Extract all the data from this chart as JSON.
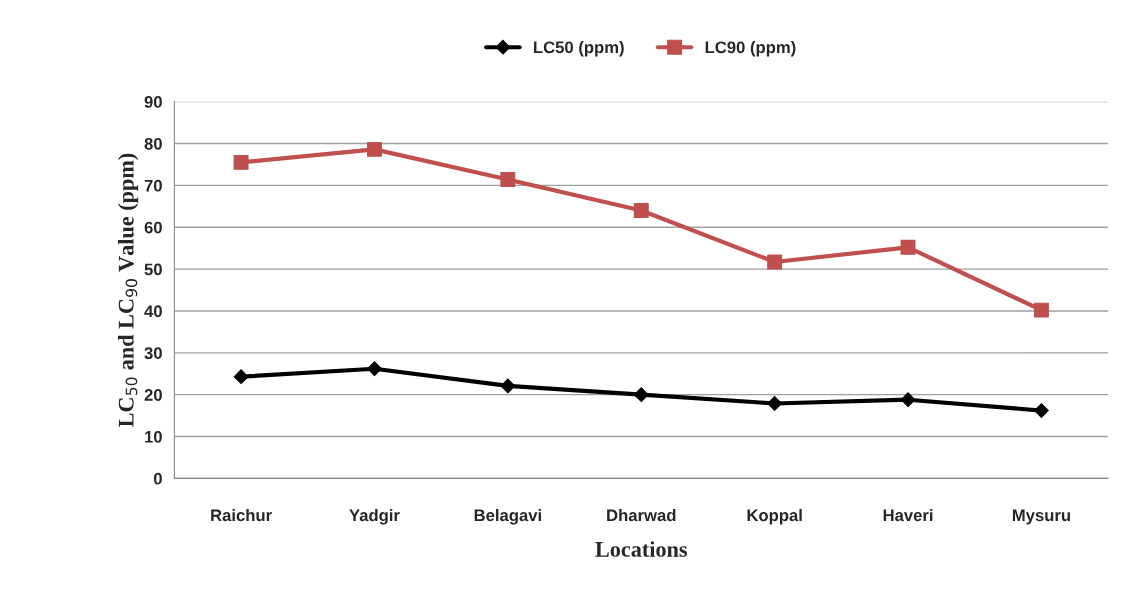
{
  "chart_data": {
    "type": "line",
    "xlabel": "Locations",
    "ylabel": "LC$_{50}$ and LC$_{90}$ Value (ppm)",
    "categories": [
      "Raichur",
      "Yadgir",
      "Belagavi",
      "Dharwad",
      "Koppal",
      "Haveri",
      "Mysuru"
    ],
    "series": [
      {
        "name": "LC50 (ppm)",
        "color": "#000000",
        "marker": "diamond",
        "values": [
          24.3,
          26.2,
          22.1,
          20.0,
          17.9,
          18.8,
          16.2
        ]
      },
      {
        "name": "LC90 (ppm)",
        "color": "#c0504d",
        "marker": "square",
        "values": [
          75.5,
          78.6,
          71.4,
          64.0,
          51.7,
          55.2,
          40.2
        ]
      }
    ],
    "ylim": [
      0,
      90
    ],
    "yticks": [
      0,
      10,
      20,
      30,
      40,
      50,
      60,
      70,
      80,
      90
    ],
    "grid": "y",
    "legend": "top",
    "line_style": "solid"
  }
}
